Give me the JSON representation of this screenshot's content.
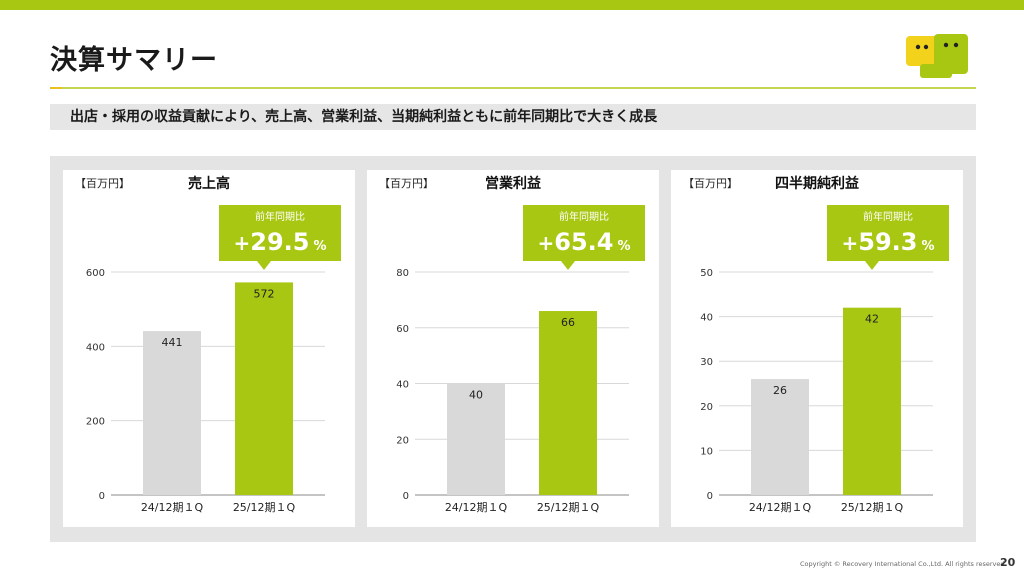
{
  "title": "決算サマリー",
  "subtitle": "出店・採用の収益貢献により、売上高、営業利益、当期純利益ともに前年同期比で大きく成長",
  "footer": {
    "copyright": "Copyright © Recovery International Co.,Ltd. All rights reserved.",
    "page": "20"
  },
  "colors": {
    "accent": "#a8c712",
    "prior_bar": "#d9d9d9"
  },
  "chart_data": [
    {
      "type": "bar",
      "unit": "【百万円】",
      "title": "売上高",
      "categories": [
        "24/12期１Q",
        "25/12期１Q"
      ],
      "values": [
        441,
        572
      ],
      "ylim": [
        0,
        600
      ],
      "yticks": [
        0,
        200,
        400,
        600
      ],
      "callout": {
        "label": "前年同期比",
        "sign": "+",
        "value": "29.5",
        "unit": "%"
      }
    },
    {
      "type": "bar",
      "unit": "【百万円】",
      "title": "営業利益",
      "categories": [
        "24/12期１Q",
        "25/12期１Q"
      ],
      "values": [
        40,
        66
      ],
      "ylim": [
        0,
        80
      ],
      "yticks": [
        0,
        20,
        40,
        60,
        80
      ],
      "callout": {
        "label": "前年同期比",
        "sign": "+",
        "value": "65.4",
        "unit": "%"
      }
    },
    {
      "type": "bar",
      "unit": "【百万円】",
      "title": "四半期純利益",
      "categories": [
        "24/12期１Q",
        "25/12期１Q"
      ],
      "values": [
        26,
        42
      ],
      "ylim": [
        0,
        50
      ],
      "yticks": [
        0,
        10,
        20,
        30,
        40,
        50
      ],
      "callout": {
        "label": "前年同期比",
        "sign": "+",
        "value": "59.3",
        "unit": "%"
      }
    }
  ]
}
